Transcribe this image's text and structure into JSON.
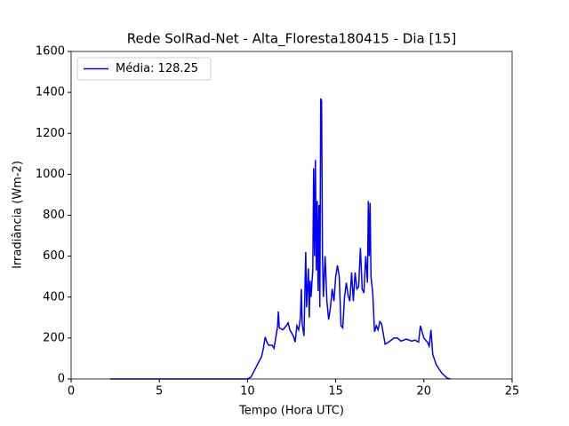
{
  "chart_data": {
    "type": "line",
    "title": "Rede SolRad-Net - Alta_Floresta180415 - Dia [15]",
    "x_label": "Tempo (Hora UTC)",
    "y_label": "Irradiância (Wm-2)",
    "x": [
      2.2,
      10,
      10.2,
      10.5,
      10.8,
      10.9,
      11.0,
      11.1,
      11.2,
      11.4,
      11.5,
      11.6,
      11.7,
      11.75,
      11.8,
      12.0,
      12.2,
      12.3,
      12.4,
      12.6,
      12.7,
      12.8,
      12.9,
      13.0,
      13.05,
      13.1,
      13.2,
      13.3,
      13.35,
      13.45,
      13.5,
      13.55,
      13.6,
      13.7,
      13.75,
      13.8,
      13.85,
      13.9,
      13.95,
      14.0,
      14.05,
      14.1,
      14.15,
      14.2,
      14.25,
      14.3,
      14.4,
      14.5,
      14.6,
      14.7,
      14.8,
      14.9,
      15.0,
      15.1,
      15.2,
      15.3,
      15.4,
      15.5,
      15.6,
      15.7,
      15.8,
      15.9,
      16.0,
      16.1,
      16.2,
      16.3,
      16.4,
      16.5,
      16.6,
      16.7,
      16.8,
      16.85,
      16.9,
      16.95,
      17.0,
      17.1,
      17.2,
      17.3,
      17.4,
      17.5,
      17.6,
      17.7,
      17.8,
      18.0,
      18.3,
      18.5,
      18.7,
      19.0,
      19.3,
      19.5,
      19.7,
      19.8,
      19.9,
      20.0,
      20.2,
      20.3,
      20.4,
      20.5,
      20.7,
      21.0,
      21.3,
      21.5
    ],
    "series": [
      {
        "name": "Média: 128.25",
        "color": "#0000ff",
        "values": [
          0,
          0,
          10,
          60,
          110,
          150,
          205,
          180,
          165,
          165,
          150,
          200,
          255,
          330,
          250,
          240,
          260,
          275,
          240,
          210,
          180,
          260,
          240,
          300,
          440,
          270,
          210,
          620,
          350,
          540,
          300,
          480,
          400,
          530,
          1030,
          600,
          1070,
          530,
          870,
          430,
          850,
          350,
          1370,
          1360,
          600,
          400,
          600,
          380,
          290,
          350,
          440,
          380,
          500,
          555,
          500,
          260,
          250,
          400,
          470,
          410,
          380,
          520,
          380,
          520,
          440,
          450,
          640,
          440,
          420,
          600,
          470,
          870,
          600,
          860,
          500,
          420,
          230,
          260,
          240,
          280,
          270,
          220,
          170,
          180,
          200,
          200,
          185,
          195,
          185,
          190,
          180,
          260,
          230,
          200,
          180,
          160,
          240,
          120,
          70,
          30,
          5,
          0
        ]
      }
    ],
    "xlim": [
      0,
      25
    ],
    "xticks": [
      0,
      5,
      10,
      15,
      20,
      25
    ],
    "ylim": [
      0,
      1600
    ],
    "yticks": [
      0,
      200,
      400,
      600,
      800,
      1000,
      1200,
      1400,
      1600
    ],
    "legend": "upper left",
    "grid": false
  }
}
